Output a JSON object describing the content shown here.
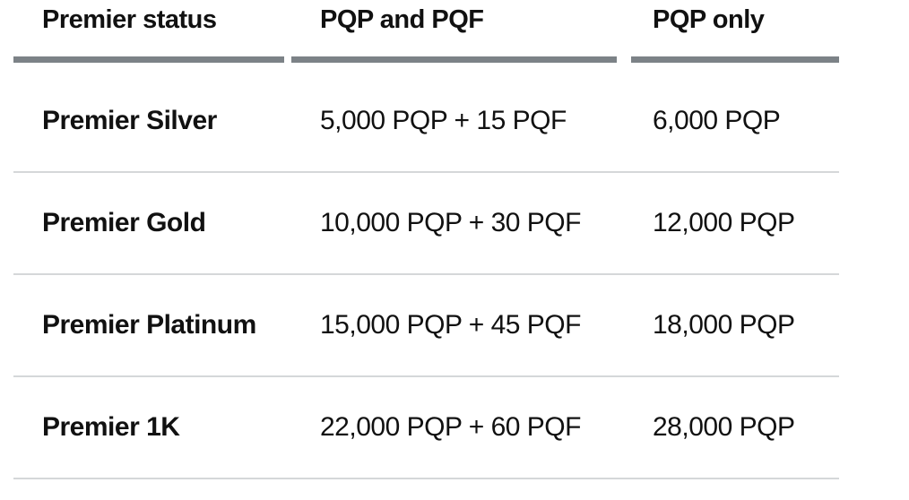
{
  "table": {
    "headers": [
      "Premier status",
      "PQP and PQF",
      "PQP only"
    ],
    "rows": [
      [
        "Premier Silver",
        "5,000 PQP + 15 PQF",
        "6,000 PQP"
      ],
      [
        "Premier Gold",
        "10,000 PQP + 30 PQF",
        "12,000 PQP"
      ],
      [
        "Premier Platinum",
        "15,000 PQP + 45 PQF",
        "18,000 PQP"
      ],
      [
        "Premier 1K",
        "22,000 PQP + 60 PQF",
        "28,000 PQP"
      ]
    ]
  }
}
